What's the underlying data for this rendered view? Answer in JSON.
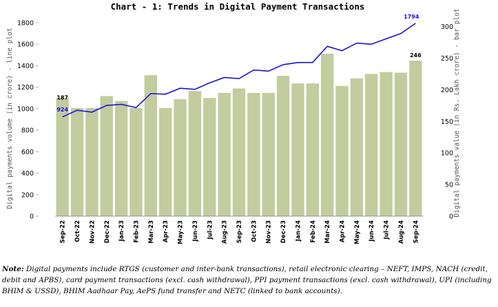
{
  "chart_data": {
    "type": "bar+line",
    "title": "Chart - 1: Trends in Digital Payment Transactions",
    "categories": [
      "Sep-22",
      "Oct-22",
      "Nov-22",
      "Dec-22",
      "Jan-23",
      "Feb-23",
      "Mar-23",
      "Apr-23",
      "May-23",
      "Jun-23",
      "Jul-23",
      "Aug-23",
      "Sep-23",
      "Oct-23",
      "Nov-23",
      "Dec-23",
      "Jan-24",
      "Feb-24",
      "Mar-24",
      "Apr-24",
      "May-24",
      "Jun-24",
      "Jul-24",
      "Aug-24",
      "Sep-24"
    ],
    "bar_series": {
      "name": "Digital payments value (in Rs. Lakh crore) - bar plot",
      "axis": "right",
      "color": "#c2cc9e",
      "values": [
        187,
        171,
        171,
        190,
        182,
        171,
        223,
        171,
        185,
        198,
        187,
        195,
        202,
        195,
        195,
        222,
        210,
        210,
        257,
        206,
        218,
        225,
        228,
        227,
        246
      ]
    },
    "line_series": {
      "name": "Digital payments volume (in crore) - line plot",
      "axis": "left",
      "color": "#1a10e0",
      "values": [
        924,
        985,
        968,
        1030,
        1040,
        1010,
        1140,
        1135,
        1190,
        1180,
        1240,
        1290,
        1280,
        1360,
        1350,
        1410,
        1430,
        1430,
        1580,
        1540,
        1610,
        1600,
        1650,
        1700,
        1794
      ]
    },
    "data_labels": {
      "bar_first": "187",
      "bar_last": "246",
      "line_first": "924",
      "line_last": "1794"
    },
    "left_axis": {
      "label": "Digital payments volume (in crore) - line plot",
      "ylim": [
        0,
        1800
      ],
      "ticks": [
        "0",
        "200",
        "400",
        "600",
        "800",
        "1000",
        "1200",
        "1400",
        "1600",
        "1800"
      ]
    },
    "right_axis": {
      "label": "Digital payments value (in Rs. Lakh crore) - bar plot",
      "ylim": [
        0,
        306
      ],
      "ticks": [
        "0",
        "50",
        "100",
        "150",
        "200",
        "250",
        "300"
      ]
    },
    "grid": false
  },
  "note": {
    "label": "Note:",
    "text": " Digital payments include RTGS (customer and inter-bank transactions), retail electronic clearing – NEFT, IMPS, NACH (credit, debit and APBS), card payment transactions (excl. cash withdrawal), PPI payment transactions (excl. cash withdrawal), UPI (including BHIM & USSD), BHIM Aadhaar Pay, AePS fund transfer and NETC (linked to bank accounts)."
  }
}
